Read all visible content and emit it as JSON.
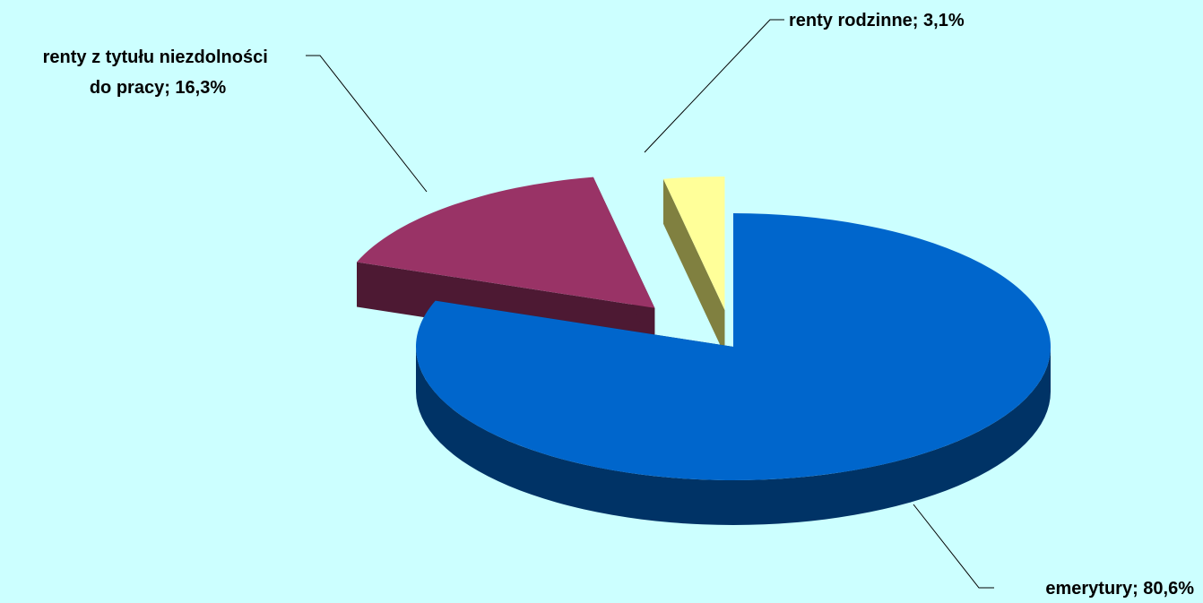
{
  "chart_data": {
    "type": "pie",
    "style": "3d-exploded",
    "background": "#ccffff",
    "slices": [
      {
        "name": "emerytury",
        "value": 80.6,
        "label_lines": [
          "emerytury; 80,6%"
        ],
        "top_color": "#0066cc",
        "side_color": "#003366"
      },
      {
        "name": "renty z tytułu niezdolności do pracy",
        "value": 16.3,
        "label_lines": [
          "renty z tytułu niezdolności",
          "do pracy; 16,3%"
        ],
        "top_color": "#993366",
        "side_color": "#4d1933"
      },
      {
        "name": "renty rodzinne",
        "value": 3.1,
        "label_lines": [
          "renty rodzinne; 3,1%"
        ],
        "top_color": "#ffff99",
        "side_color": "#808040"
      }
    ],
    "title": "",
    "legend": "none",
    "data_labels": "outside-with-leader-lines"
  }
}
